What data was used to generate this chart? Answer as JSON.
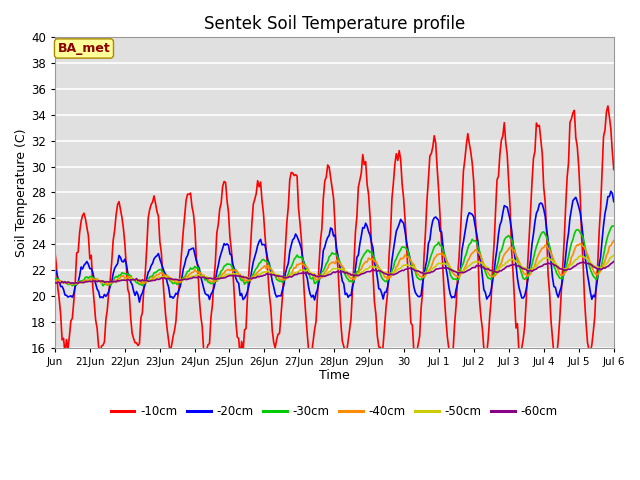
{
  "title": "Sentek Soil Temperature profile",
  "xlabel": "Time",
  "ylabel": "Soil Temperature (C)",
  "ylim": [
    16,
    40
  ],
  "yticks": [
    16,
    18,
    20,
    22,
    24,
    26,
    28,
    30,
    32,
    34,
    36,
    38,
    40
  ],
  "annotation": "BA_met",
  "annotation_color": "#8B0000",
  "annotation_bg": "#FFFF99",
  "bg_color": "#E0E0E0",
  "legend_labels": [
    "-10cm",
    "-20cm",
    "-30cm",
    "-40cm",
    "-50cm",
    "-60cm"
  ],
  "line_colors": [
    "#FF0000",
    "#0000FF",
    "#00CC00",
    "#FF8C00",
    "#CCCC00",
    "#880088"
  ],
  "xtick_labels": [
    "Jun",
    "21Jun",
    "22Jun",
    "23Jun",
    "24Jun",
    "25Jun",
    "26Jun",
    "27Jun",
    "28Jun",
    "29Jun",
    "30",
    "Jul 1",
    "Jul 2",
    "Jul 3",
    "Jul 4",
    "Jul 5",
    "Jul 6"
  ],
  "num_days": 16
}
